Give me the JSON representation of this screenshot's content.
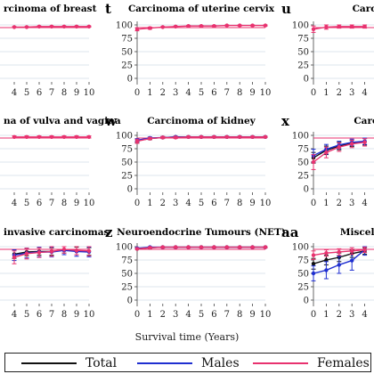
{
  "colors": {
    "total": "#111111",
    "males": "#1f2fd0",
    "females": "#e8326f",
    "reference": "#e8326f",
    "grid": "#d2dde6",
    "axis": "#444444"
  },
  "shared_x_label": "Survival time (Years)",
  "legend": [
    {
      "key": "total",
      "label": "Total"
    },
    {
      "key": "males",
      "label": "Males"
    },
    {
      "key": "females",
      "label": "Females"
    }
  ],
  "chart_data": [
    {
      "type": "line",
      "letter": "",
      "title": "rcinoma of breast",
      "x": [
        4,
        5,
        6,
        7,
        8,
        9,
        10
      ],
      "ylim": [
        0,
        100
      ],
      "yticks": [],
      "series": [
        {
          "key": "females",
          "values": [
            96,
            96,
            97,
            97,
            97,
            97,
            97
          ],
          "err": [
            1,
            1,
            1,
            1,
            1,
            1,
            1
          ]
        }
      ]
    },
    {
      "type": "line",
      "letter": "t",
      "title": "Carcinoma of uterine cervix",
      "x": [
        0,
        1,
        2,
        3,
        4,
        5,
        6,
        7,
        8,
        9,
        10
      ],
      "ylim": [
        0,
        100
      ],
      "yticks": [
        0,
        25,
        50,
        75,
        100
      ],
      "series": [
        {
          "key": "females",
          "values": [
            92,
            94,
            96,
            97,
            98,
            98,
            98,
            99,
            99,
            99,
            99
          ],
          "err": [
            3,
            2,
            1,
            1,
            1,
            1,
            1,
            1,
            1,
            1,
            1
          ]
        }
      ]
    },
    {
      "type": "line",
      "letter": "u",
      "title": "Carcinom",
      "x": [
        0,
        1,
        2,
        3,
        4
      ],
      "ylim": [
        0,
        100
      ],
      "yticks": [
        0,
        25,
        50,
        75,
        100
      ],
      "series": [
        {
          "key": "females",
          "values": [
            92,
            96,
            97,
            97,
            97
          ],
          "err": [
            6,
            4,
            3,
            3,
            3
          ]
        }
      ]
    },
    {
      "type": "line",
      "letter": "",
      "title": "na of vulva and vagina",
      "x": [
        4,
        5,
        6,
        7,
        8,
        9,
        10
      ],
      "ylim": [
        0,
        100
      ],
      "yticks": [],
      "series": [
        {
          "key": "females",
          "values": [
            97,
            97,
            97,
            97,
            97,
            97,
            97
          ],
          "err": [
            2,
            2,
            2,
            2,
            2,
            2,
            2
          ]
        }
      ]
    },
    {
      "type": "line",
      "letter": "w",
      "title": "Carcinoma of kidney",
      "x": [
        0,
        1,
        2,
        3,
        4,
        5,
        6,
        7,
        8,
        9,
        10
      ],
      "ylim": [
        0,
        100
      ],
      "yticks": [
        0,
        25,
        50,
        75,
        100
      ],
      "series": [
        {
          "key": "total",
          "values": [
            90,
            94,
            96,
            97,
            97,
            97,
            97,
            97,
            97,
            97,
            97
          ],
          "err": [
            3,
            2,
            1,
            1,
            1,
            1,
            1,
            1,
            1,
            1,
            1
          ]
        },
        {
          "key": "males",
          "values": [
            91,
            95,
            96,
            97,
            97,
            97,
            97,
            97,
            97,
            97,
            97
          ],
          "err": [
            3,
            2,
            1,
            1,
            1,
            1,
            1,
            1,
            1,
            1,
            1
          ]
        },
        {
          "key": "females",
          "values": [
            89,
            94,
            96,
            96,
            97,
            97,
            97,
            97,
            97,
            97,
            97
          ],
          "err": [
            4,
            2,
            2,
            2,
            1,
            1,
            1,
            1,
            1,
            1,
            1
          ]
        }
      ]
    },
    {
      "type": "line",
      "letter": "x",
      "title": "Carcinon",
      "x": [
        0,
        1,
        2,
        3,
        4
      ],
      "ylim": [
        0,
        100
      ],
      "yticks": [
        0,
        25,
        50,
        75,
        100
      ],
      "series": [
        {
          "key": "total",
          "values": [
            58,
            72,
            80,
            85,
            88
          ],
          "err": [
            10,
            8,
            7,
            6,
            6
          ]
        },
        {
          "key": "males",
          "values": [
            62,
            74,
            82,
            87,
            89
          ],
          "err": [
            12,
            9,
            7,
            6,
            6
          ]
        },
        {
          "key": "females",
          "values": [
            50,
            68,
            78,
            84,
            87
          ],
          "err": [
            14,
            10,
            8,
            7,
            7
          ]
        }
      ]
    },
    {
      "type": "line",
      "letter": "",
      "title": "invasive carcinomas",
      "x": [
        4,
        5,
        6,
        7,
        8,
        9,
        10
      ],
      "ylim": [
        0,
        100
      ],
      "yticks": [],
      "series": [
        {
          "key": "total",
          "values": [
            86,
            90,
            91,
            91,
            94,
            92,
            91
          ],
          "err": [
            8,
            7,
            7,
            7,
            6,
            7,
            7
          ]
        },
        {
          "key": "males",
          "values": [
            84,
            88,
            90,
            90,
            93,
            91,
            90
          ],
          "err": [
            10,
            9,
            9,
            9,
            8,
            9,
            9
          ]
        },
        {
          "key": "females",
          "values": [
            80,
            87,
            89,
            91,
            95,
            93,
            92
          ],
          "err": [
            12,
            10,
            9,
            9,
            7,
            8,
            9
          ]
        }
      ]
    },
    {
      "type": "line",
      "letter": "z",
      "title": "Neuroendocrine Tumours (NET)",
      "x": [
        0,
        1,
        2,
        3,
        4,
        5,
        6,
        7,
        8,
        9,
        10
      ],
      "ylim": [
        0,
        100
      ],
      "yticks": [
        0,
        25,
        50,
        75,
        100
      ],
      "series": [
        {
          "key": "total",
          "values": [
            96,
            98,
            99,
            99,
            99,
            99,
            99,
            99,
            99,
            99,
            99
          ],
          "err": [
            1,
            1,
            1,
            1,
            1,
            1,
            1,
            1,
            1,
            1,
            1
          ]
        },
        {
          "key": "males",
          "values": [
            97,
            99,
            99,
            99,
            99,
            99,
            99,
            99,
            99,
            99,
            99
          ],
          "err": [
            1,
            1,
            1,
            1,
            1,
            1,
            1,
            1,
            1,
            1,
            1
          ]
        },
        {
          "key": "females",
          "values": [
            96,
            98,
            99,
            99,
            99,
            99,
            99,
            99,
            99,
            99,
            99
          ],
          "err": [
            1,
            1,
            1,
            1,
            1,
            1,
            1,
            1,
            1,
            1,
            1
          ]
        }
      ]
    },
    {
      "type": "line",
      "letter": "aa",
      "title": "Miscellaneous",
      "x": [
        0,
        1,
        2,
        3,
        4
      ],
      "ylim": [
        0,
        100
      ],
      "yticks": [
        0,
        25,
        50,
        75,
        100
      ],
      "series": [
        {
          "key": "total",
          "values": [
            68,
            75,
            80,
            87,
            92
          ],
          "err": [
            10,
            9,
            8,
            7,
            6
          ]
        },
        {
          "key": "males",
          "values": [
            50,
            56,
            66,
            74,
            94
          ],
          "err": [
            14,
            16,
            16,
            18,
            10
          ]
        },
        {
          "key": "females",
          "values": [
            84,
            88,
            90,
            92,
            94
          ],
          "err": [
            8,
            6,
            6,
            6,
            5
          ]
        }
      ]
    }
  ]
}
